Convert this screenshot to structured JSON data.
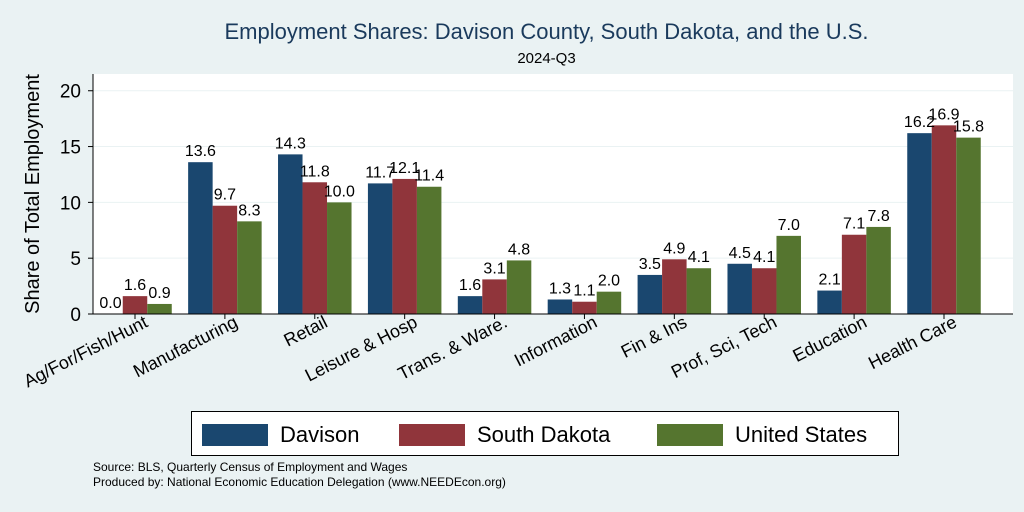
{
  "chart_data": {
    "type": "bar",
    "title": "Employment Shares: Davison County, South Dakota, and the U.S.",
    "subtitle": "2024-Q3",
    "ylabel": "Share of Total Employment",
    "xlabel": "",
    "ylim": [
      0,
      21.5
    ],
    "yticks": [
      0,
      5,
      10,
      15,
      20
    ],
    "grid": true,
    "legend_position": "bottom",
    "categories": [
      "Ag/For/Fish/Hunt",
      "Manufacturing",
      "Retail",
      "Leisure & Hosp",
      "Trans. & Ware.",
      "Information",
      "Fin & Ins",
      "Prof, Sci, Tech",
      "Education",
      "Health Care"
    ],
    "series": [
      {
        "name": "Davison",
        "color": "#1a476f",
        "values": [
          0.0,
          13.6,
          14.3,
          11.7,
          1.6,
          1.3,
          3.5,
          4.5,
          2.1,
          16.2
        ]
      },
      {
        "name": "South Dakota",
        "color": "#90353b",
        "values": [
          1.6,
          9.7,
          11.8,
          12.1,
          3.1,
          1.1,
          4.9,
          4.1,
          7.1,
          16.9
        ]
      },
      {
        "name": "United States",
        "color": "#55752f",
        "values": [
          0.9,
          8.3,
          10.0,
          11.4,
          4.8,
          2.0,
          4.1,
          7.0,
          7.8,
          15.8
        ]
      }
    ]
  },
  "source": {
    "line1": "Source: BLS, Quarterly Census of Employment and Wages",
    "line2": "Produced by: National Economic Education Delegation (www.NEEDEcon.org)"
  }
}
